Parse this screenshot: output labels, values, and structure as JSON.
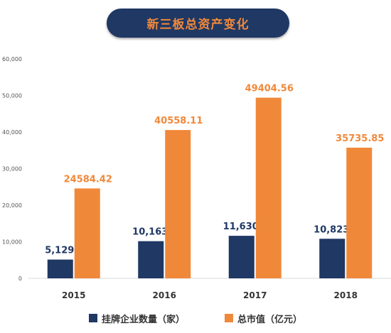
{
  "chart_data": {
    "type": "bar",
    "title": "新三板总资产变化",
    "categories": [
      "2015",
      "2016",
      "2017",
      "2018"
    ],
    "series": [
      {
        "name": "挂牌企业数量（家）",
        "color": "#1f3864",
        "values": [
          5129,
          10163,
          11630,
          10823
        ],
        "labels": [
          "5,129",
          "10,163",
          "11,630",
          "10,823"
        ]
      },
      {
        "name": "总市值（亿元）",
        "color": "#f0883a",
        "values": [
          24584.42,
          40558.11,
          49404.56,
          35735.85
        ],
        "labels": [
          "24584.42",
          "40558.11",
          "49404.56",
          "35735.85"
        ]
      }
    ],
    "ylim": [
      0,
      60000
    ],
    "yticks": [
      0,
      10000,
      20000,
      30000,
      40000,
      50000,
      60000
    ],
    "ytick_labels": [
      "0",
      "10,000",
      "20,000",
      "30,000",
      "40,000",
      "50,000",
      "60,000"
    ],
    "grid": false,
    "legend_position": "bottom"
  }
}
